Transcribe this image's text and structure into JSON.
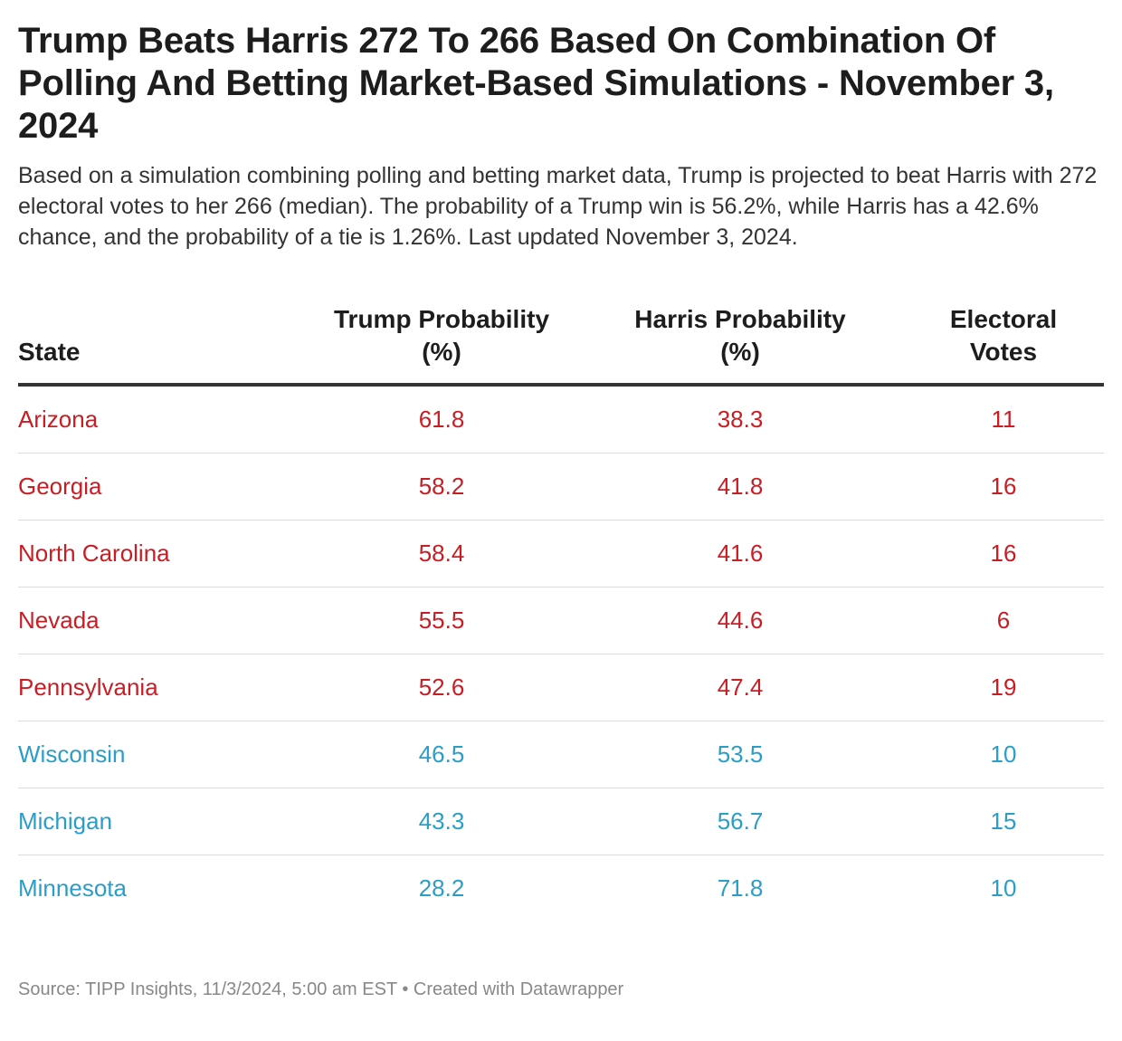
{
  "title": "Trump Beats Harris 272 To 266 Based On Combination Of Polling And Betting Market-Based Simulations - November 3, 2024",
  "description": "Based on a simulation combining polling and betting market data, Trump is projected to beat Harris with 272 electoral votes to her 266 (median). The probability of a Trump win is 56.2%, while Harris has a 42.6% chance, and the probability of a tie is 1.26%. Last updated November 3, 2024.",
  "colors": {
    "trump_leaning": "#c91d24",
    "harris_leaning": "#2a9ec8"
  },
  "chart_data": {
    "type": "table",
    "columns": [
      "State",
      "Trump Probability (%)",
      "Harris Probability (%)",
      "Electoral Votes"
    ],
    "rows": [
      {
        "state": "Arizona",
        "trump": "61.8",
        "harris": "38.3",
        "ev": "11",
        "lean": "trump"
      },
      {
        "state": "Georgia",
        "trump": "58.2",
        "harris": "41.8",
        "ev": "16",
        "lean": "trump"
      },
      {
        "state": "North Carolina",
        "trump": "58.4",
        "harris": "41.6",
        "ev": "16",
        "lean": "trump"
      },
      {
        "state": "Nevada",
        "trump": "55.5",
        "harris": "44.6",
        "ev": "6",
        "lean": "trump"
      },
      {
        "state": "Pennsylvania",
        "trump": "52.6",
        "harris": "47.4",
        "ev": "19",
        "lean": "trump"
      },
      {
        "state": "Wisconsin",
        "trump": "46.5",
        "harris": "53.5",
        "ev": "10",
        "lean": "harris"
      },
      {
        "state": "Michigan",
        "trump": "43.3",
        "harris": "56.7",
        "ev": "15",
        "lean": "harris"
      },
      {
        "state": "Minnesota",
        "trump": "28.2",
        "harris": "71.8",
        "ev": "10",
        "lean": "harris"
      }
    ]
  },
  "footer": "Source: TIPP Insights, 11/3/2024, 5:00 am EST • Created with Datawrapper"
}
